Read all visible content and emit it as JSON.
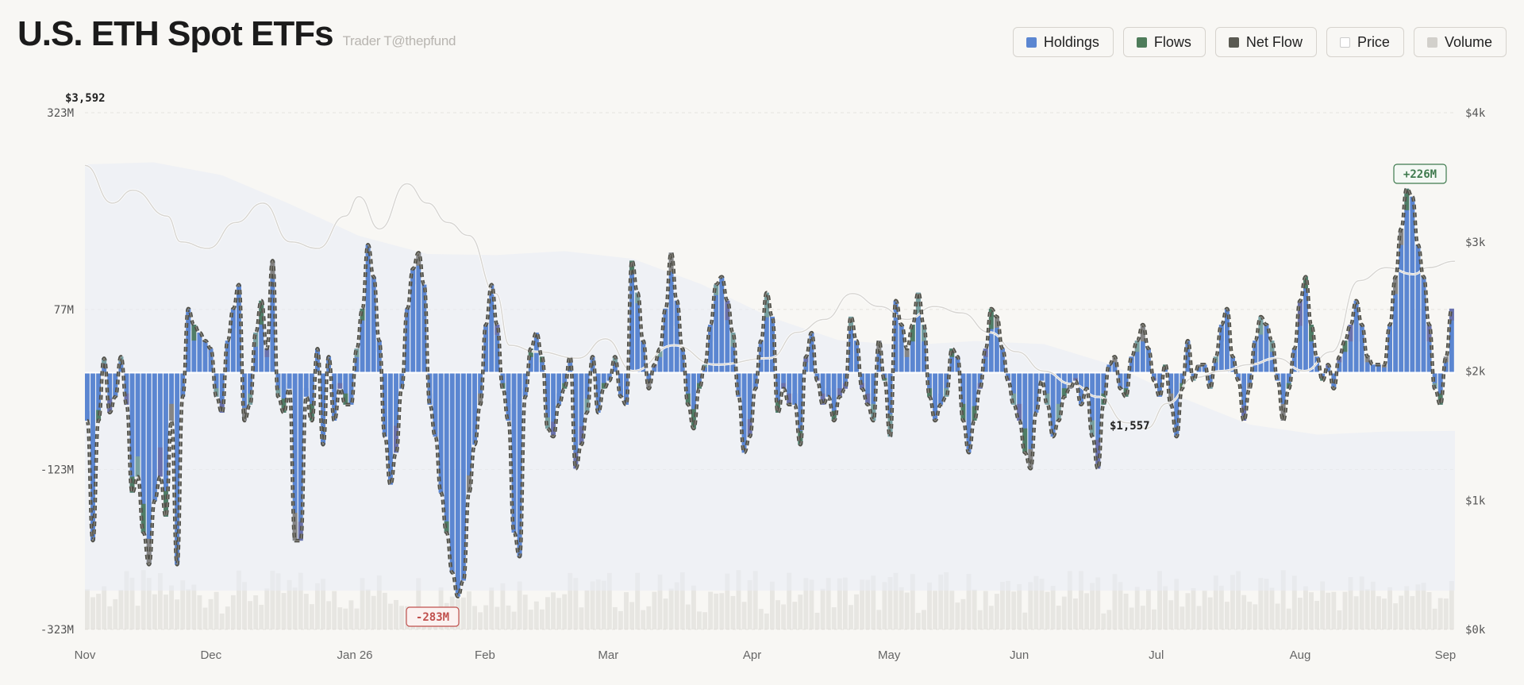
{
  "header": {
    "title": "U.S. ETH Spot ETFs",
    "subtitle": "Trader T@thepfund"
  },
  "legend": [
    {
      "label": "Holdings",
      "color": "#5b86d1",
      "icon": "square"
    },
    {
      "label": "Flows",
      "color": "#4e7c5a",
      "icon": "square"
    },
    {
      "label": "Net Flow",
      "color": "#5a5a52",
      "icon": "square"
    },
    {
      "label": "Price",
      "color": "#ffffff",
      "icon": "square"
    },
    {
      "label": "Volume",
      "color": "#d2d0cb",
      "icon": "square"
    }
  ],
  "colors": {
    "holdings": "#5b86d1",
    "flows": "#4e7c5a",
    "netflow": "#57574f",
    "price": "#ffffff",
    "volume": "#d2d0cb",
    "negative_badge": "#c0504d",
    "positive_badge": "#3f7a4e"
  },
  "chart_data": {
    "type": "bar",
    "title": "U.S. ETH Spot ETFs",
    "subtitle": "Trader T@thepfund",
    "y_left": {
      "ticks": [
        "323M",
        "77M",
        "-123M",
        "-323M"
      ],
      "tick_values": [
        323,
        77,
        -123,
        -323
      ],
      "range": [
        -323,
        323
      ],
      "unit": "M"
    },
    "y_right": {
      "ticks": [
        "$4k",
        "$3k",
        "$2k",
        "$1k",
        "$0k"
      ],
      "tick_values": [
        4000,
        3000,
        2000,
        1000,
        0
      ],
      "range": [
        0,
        4000
      ]
    },
    "x_ticks": [
      "Nov",
      "Dec",
      "Jan 26",
      "Feb",
      "Mar",
      "Apr",
      "May",
      "Jun",
      "Jul",
      "Aug",
      "Sep"
    ],
    "annotations": [
      {
        "text": "$3,592",
        "type": "price-high"
      },
      {
        "text": "$1,557",
        "type": "price-low"
      },
      {
        "text": "+226M",
        "type": "max-flow"
      },
      {
        "text": "-283M",
        "type": "min-flow"
      }
    ],
    "grid": true,
    "legend_position": "top-right",
    "net_flow_series": [
      -60,
      -210,
      -60,
      18,
      -50,
      -30,
      20,
      -40,
      -150,
      -130,
      -200,
      -240,
      -160,
      -130,
      -180,
      -60,
      -240,
      -30,
      80,
      60,
      50,
      40,
      30,
      -30,
      -50,
      40,
      80,
      110,
      -60,
      -40,
      50,
      90,
      30,
      140,
      -30,
      -50,
      -20,
      -210,
      -210,
      -30,
      -60,
      30,
      -90,
      20,
      -60,
      -20,
      -40,
      -40,
      30,
      80,
      160,
      120,
      40,
      -80,
      -140,
      -100,
      -20,
      80,
      130,
      150,
      110,
      -40,
      -80,
      -150,
      -200,
      -250,
      -280,
      -260,
      -150,
      -90,
      -40,
      60,
      110,
      60,
      -20,
      -60,
      -200,
      -230,
      -30,
      30,
      50,
      20,
      -70,
      -80,
      -40,
      -20,
      20,
      -120,
      -90,
      -50,
      20,
      -50,
      -20,
      -10,
      20,
      -30,
      -40,
      140,
      100,
      40,
      -20,
      10,
      30,
      80,
      150,
      90,
      30,
      -40,
      -70,
      -20,
      10,
      60,
      110,
      120,
      90,
      50,
      -30,
      -100,
      -80,
      -20,
      40,
      100,
      70,
      -50,
      -20,
      -40,
      -40,
      -90,
      20,
      50,
      -10,
      -40,
      -30,
      -60,
      -30,
      -20,
      70,
      40,
      -20,
      -40,
      -60,
      40,
      -10,
      -80,
      90,
      60,
      30,
      60,
      100,
      60,
      -30,
      -60,
      -40,
      -30,
      30,
      20,
      -60,
      -100,
      -60,
      -20,
      30,
      80,
      70,
      30,
      -10,
      -40,
      -60,
      -100,
      -120,
      -50,
      -10,
      -40,
      -80,
      -60,
      -30,
      -20,
      -10,
      -40,
      -20,
      -80,
      -120,
      -40,
      10,
      20,
      -20,
      -30,
      20,
      40,
      60,
      30,
      -10,
      -30,
      10,
      -40,
      -80,
      -20,
      40,
      -10,
      10,
      10,
      -20,
      20,
      60,
      80,
      20,
      -10,
      -60,
      -20,
      40,
      70,
      60,
      40,
      -10,
      -60,
      -20,
      30,
      90,
      120,
      60,
      20,
      -10,
      10,
      -20,
      20,
      40,
      60,
      90,
      60,
      20,
      10,
      10,
      10,
      60,
      120,
      180,
      230,
      220,
      160,
      120,
      60,
      -20,
      -40,
      20,
      80
    ]
  }
}
